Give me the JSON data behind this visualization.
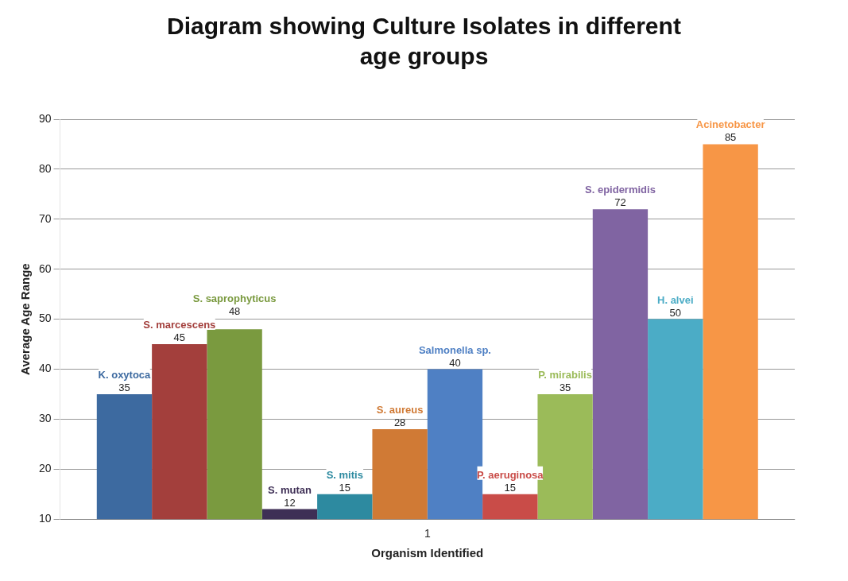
{
  "chart_data": {
    "type": "bar",
    "title": "Diagram showing Culture Isolates in different age groups",
    "xlabel": "Organism Identified",
    "ylabel": "Average Age Range",
    "categories": [
      "1"
    ],
    "series": [
      {
        "name": "K. oxytoca",
        "color": "#3d6aa0",
        "values": [
          35
        ]
      },
      {
        "name": "S. marcescens",
        "color": "#a33f3c",
        "values": [
          45
        ]
      },
      {
        "name": "S. saprophyticus",
        "color": "#7a9a3f",
        "values": [
          48
        ]
      },
      {
        "name": "S. mutan",
        "color": "#3e2f55",
        "values": [
          12
        ]
      },
      {
        "name": "S. mitis",
        "color": "#2d8aa0",
        "values": [
          15
        ]
      },
      {
        "name": "S. aureus",
        "color": "#d07a35",
        "values": [
          28
        ]
      },
      {
        "name": "Salmonella sp.",
        "color": "#4f80c4",
        "values": [
          40
        ]
      },
      {
        "name": "P. aeruginosa",
        "color": "#c94c48",
        "values": [
          15
        ]
      },
      {
        "name": "P. mirabilis",
        "color": "#9bbb59",
        "values": [
          35
        ]
      },
      {
        "name": "S. epidermidis",
        "color": "#8064a2",
        "values": [
          72
        ]
      },
      {
        "name": "H. alvei",
        "color": "#4bacc6",
        "values": [
          50
        ]
      },
      {
        "name": "Acinetobacter",
        "color": "#f79646",
        "values": [
          85
        ]
      }
    ],
    "ylim": [
      10,
      90
    ],
    "yticks": [
      10,
      20,
      30,
      40,
      50,
      60,
      70,
      80,
      90
    ],
    "grid": "y",
    "data_labels": true,
    "legend": false
  }
}
